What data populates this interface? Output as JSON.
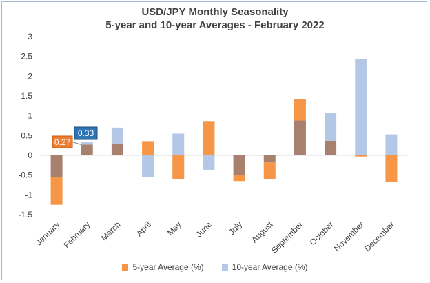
{
  "colors": {
    "five_year": "#F79646",
    "ten_year": "#B4C7E7",
    "overlap": "#A8806E",
    "text": "#404040",
    "gridline": "#D9D9D9",
    "callout_5yr_bg": "#ED7D31",
    "callout_10yr_bg": "#2E75B6"
  },
  "chart_data": {
    "type": "bar",
    "title": "USD/JPY Monthly Seasonality",
    "subtitle": "5-year and 10-year Averages - February 2022",
    "categories": [
      "January",
      "February",
      "March",
      "April",
      "May",
      "June",
      "July",
      "August",
      "September",
      "October",
      "November",
      "December"
    ],
    "series": [
      {
        "name": "5-year Average (%)",
        "values": [
          -1.25,
          0.27,
          0.3,
          0.36,
          -0.6,
          0.85,
          -0.65,
          -0.6,
          1.43,
          0.37,
          -0.03,
          -0.68
        ]
      },
      {
        "name": "10-year Average (%)",
        "values": [
          -0.55,
          0.33,
          0.7,
          -0.55,
          0.55,
          -0.37,
          -0.5,
          -0.18,
          0.88,
          1.08,
          2.43,
          0.53
        ]
      }
    ],
    "ylim": [
      -1.5,
      3
    ],
    "yticks": [
      "3",
      "2.5",
      "2",
      "1.5",
      "1",
      "0.5",
      "0",
      "-0.5",
      "-1",
      "-1.5"
    ],
    "grid": false,
    "legend_position": "bottom",
    "annotations": [
      {
        "label": "0.27",
        "series": "5-year Average (%)",
        "category": "February"
      },
      {
        "label": "0.33",
        "series": "10-year Average (%)",
        "category": "February"
      }
    ]
  }
}
